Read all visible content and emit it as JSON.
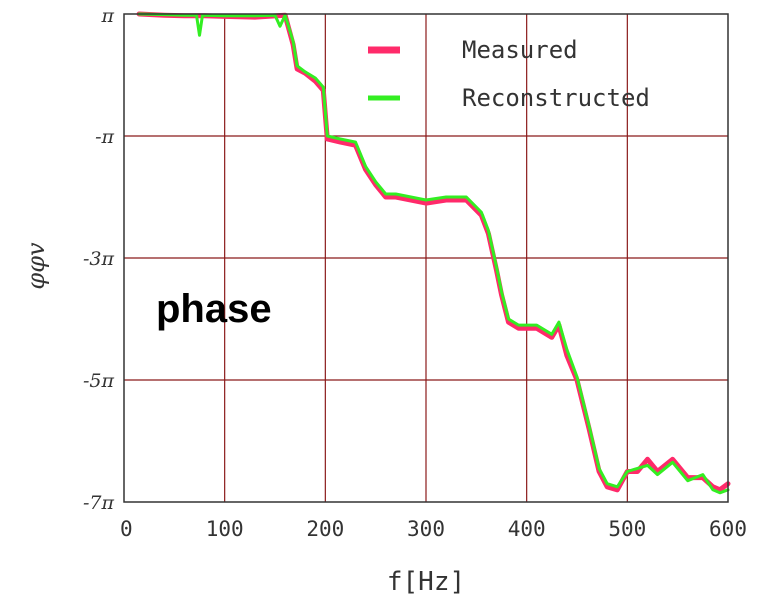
{
  "chart_data": {
    "type": "line",
    "title": "",
    "xlabel": "f[Hz]",
    "ylabel": "φφv",
    "xlim": [
      0,
      600
    ],
    "ylim": [
      -7,
      1
    ],
    "y_unit": "π",
    "grid": true,
    "legend_position": "top-right",
    "annotation": "phase",
    "x_ticks": [
      {
        "value": 0,
        "label": "0"
      },
      {
        "value": 100,
        "label": "100"
      },
      {
        "value": 200,
        "label": "200"
      },
      {
        "value": 300,
        "label": "300"
      },
      {
        "value": 400,
        "label": "400"
      },
      {
        "value": 500,
        "label": "500"
      },
      {
        "value": 600,
        "label": "600"
      }
    ],
    "y_ticks": [
      {
        "value": 1,
        "label": "π"
      },
      {
        "value": -1,
        "label": "-π"
      },
      {
        "value": -3,
        "label": "-3π"
      },
      {
        "value": -5,
        "label": "-5π"
      },
      {
        "value": -7,
        "label": "-7π"
      }
    ],
    "series": [
      {
        "name": "Measured",
        "color": "#ff2a6a",
        "x": [
          15,
          40,
          60,
          80,
          100,
          130,
          160,
          168,
          172,
          180,
          190,
          198,
          202,
          215,
          230,
          240,
          250,
          260,
          270,
          285,
          300,
          320,
          340,
          355,
          362,
          370,
          375,
          382,
          392,
          410,
          425,
          432,
          440,
          450,
          462,
          472,
          480,
          490,
          500,
          510,
          520,
          530,
          545,
          560,
          575,
          585,
          592,
          600
        ],
        "y": [
          1.0,
          0.98,
          0.97,
          0.97,
          0.96,
          0.95,
          0.98,
          0.5,
          0.1,
          0.03,
          -0.1,
          -0.25,
          -1.05,
          -1.1,
          -1.15,
          -1.55,
          -1.8,
          -2.0,
          -2.0,
          -2.05,
          -2.1,
          -2.05,
          -2.05,
          -2.3,
          -2.6,
          -3.2,
          -3.6,
          -4.05,
          -4.15,
          -4.15,
          -4.3,
          -4.1,
          -4.6,
          -5.0,
          -5.8,
          -6.5,
          -6.75,
          -6.8,
          -6.5,
          -6.5,
          -6.3,
          -6.5,
          -6.3,
          -6.6,
          -6.6,
          -6.75,
          -6.8,
          -6.7
        ]
      },
      {
        "name": "Reconstructed",
        "color": "#33ee22",
        "x": [
          15,
          40,
          60,
          72,
          75,
          78,
          100,
          130,
          150,
          155,
          160,
          168,
          172,
          180,
          190,
          198,
          202,
          215,
          230,
          240,
          250,
          260,
          270,
          285,
          300,
          320,
          340,
          355,
          362,
          370,
          375,
          382,
          392,
          410,
          425,
          432,
          440,
          450,
          462,
          472,
          480,
          490,
          500,
          510,
          520,
          530,
          545,
          560,
          575,
          585,
          592,
          600
        ],
        "y": [
          1.0,
          0.99,
          0.98,
          0.98,
          0.65,
          0.98,
          0.97,
          0.97,
          0.98,
          0.8,
          0.98,
          0.55,
          0.15,
          0.05,
          -0.05,
          -0.2,
          -1.0,
          -1.05,
          -1.1,
          -1.5,
          -1.75,
          -1.95,
          -1.95,
          -2.0,
          -2.05,
          -2.0,
          -2.0,
          -2.25,
          -2.55,
          -3.15,
          -3.55,
          -4.0,
          -4.1,
          -4.1,
          -4.25,
          -4.05,
          -4.5,
          -4.95,
          -5.75,
          -6.45,
          -6.7,
          -6.75,
          -6.5,
          -6.45,
          -6.4,
          -6.55,
          -6.35,
          -6.65,
          -6.55,
          -6.8,
          -6.85,
          -6.8
        ]
      }
    ]
  }
}
